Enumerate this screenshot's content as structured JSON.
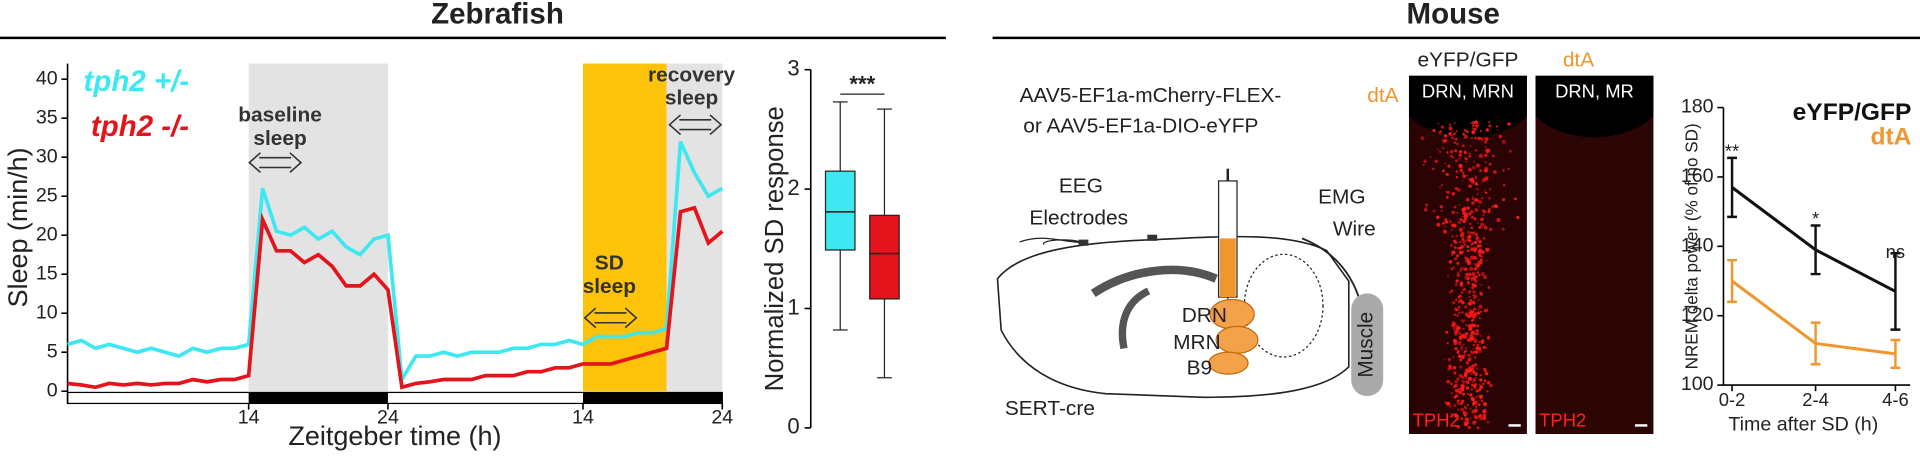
{
  "headers": [
    "Zebrafish",
    "Mouse"
  ],
  "chart_data": [
    {
      "type": "line",
      "x_label": "Zeitgeber time (h)",
      "y_label": "Sleep (min/h)",
      "x": [
        1,
        2,
        3,
        4,
        5,
        6,
        7,
        8,
        9,
        10,
        11,
        12,
        13,
        14,
        15,
        16,
        17,
        18,
        19,
        20,
        21,
        22,
        23,
        24,
        25,
        26,
        27,
        28,
        29,
        30,
        31,
        32,
        33,
        34,
        35,
        36,
        37,
        38,
        39,
        40,
        41,
        42,
        43,
        44,
        45,
        46,
        47,
        48
      ],
      "xlim": [
        1,
        48
      ],
      "xticks": [
        14,
        24,
        {
          "value": 38,
          "label": "14"
        },
        {
          "value": 48,
          "label": "24"
        }
      ],
      "ylim": [
        0,
        42
      ],
      "yticks": [
        0,
        5,
        10,
        15,
        20,
        25,
        30,
        35,
        40
      ],
      "series": [
        {
          "name": "tph2 +/-",
          "color": "#3ee8f0",
          "values": [
            6,
            6.5,
            5.5,
            6,
            5.5,
            5,
            5.5,
            5,
            4.5,
            5.5,
            5,
            5.5,
            5.5,
            6,
            26,
            20.5,
            20,
            21,
            19.5,
            20.5,
            18.5,
            17.5,
            19.5,
            20,
            1.5,
            4.5,
            4.5,
            5,
            4.5,
            5,
            5,
            5,
            5.5,
            5.5,
            6,
            6,
            6.5,
            6,
            7,
            7,
            7,
            7.5,
            7.5,
            8,
            32,
            28,
            25,
            26
          ]
        },
        {
          "name": "tph2 -/-",
          "color": "#e3141b",
          "values": [
            1,
            0.8,
            0.5,
            1,
            0.8,
            1,
            0.8,
            1,
            1,
            1.5,
            1.2,
            1.5,
            1.5,
            2,
            22,
            18,
            18,
            16.5,
            17.5,
            16,
            13.5,
            13.5,
            15,
            13,
            0.5,
            1,
            1.2,
            1.5,
            1.5,
            1.5,
            2,
            2,
            2,
            2.5,
            2.5,
            3,
            3,
            3.5,
            3.5,
            3.5,
            4,
            4.5,
            5,
            5.5,
            23,
            23.5,
            19,
            20.5
          ]
        }
      ],
      "shading": [
        {
          "range": [
            14,
            24
          ],
          "color": "#e3e3e3"
        },
        {
          "range": [
            38,
            44
          ],
          "color": "#fcc30a"
        },
        {
          "range": [
            44,
            48
          ],
          "color": "#e3e3e3"
        }
      ],
      "dark_periods": [
        [
          14,
          24
        ],
        [
          38,
          48
        ]
      ],
      "annotations": [
        {
          "lines": [
            "baseline",
            "sleep"
          ]
        },
        {
          "lines": [
            "SD",
            "sleep"
          ]
        },
        {
          "lines": [
            "recovery",
            "sleep"
          ]
        }
      ]
    },
    {
      "type": "box",
      "y_label": "Normalized SD response",
      "ylim": [
        0,
        3
      ],
      "yticks": [
        0,
        1,
        2,
        3
      ],
      "boxes": [
        {
          "color": "#3ee8f0",
          "whisker_low": 0.82,
          "q1": 1.49,
          "median": 1.81,
          "q3": 2.15,
          "whisker_high": 2.73
        },
        {
          "color": "#e3141b",
          "whisker_low": 0.42,
          "q1": 1.08,
          "median": 1.46,
          "q3": 1.78,
          "whisker_high": 2.67
        }
      ],
      "significance": "***"
    },
    {
      "type": "line",
      "x_label": "Time after SD (h)",
      "y_label": "NREM delta power (% of no SD)",
      "categories": [
        "0-2",
        "2-4",
        "4-6"
      ],
      "ylim": [
        100,
        180
      ],
      "yticks": [
        100,
        120,
        140,
        160,
        180
      ],
      "series": [
        {
          "name": "eYFP/GFP",
          "color": "#111111",
          "values": [
            157,
            139,
            127
          ],
          "errors": [
            8.5,
            7,
            11
          ]
        },
        {
          "name": "dtA",
          "color": "#f0962e",
          "values": [
            130,
            112,
            109
          ],
          "errors": [
            6,
            6,
            4
          ]
        }
      ],
      "annotations": [
        "**",
        "*",
        "ns"
      ]
    }
  ],
  "diagram": {
    "virus": [
      "AAV5-EF1a-mCherry-FLEX-",
      "dtA",
      "or AAV5-EF1a-DIO-eYFP"
    ],
    "eeg": [
      "EEG",
      "Electrodes"
    ],
    "emg": [
      "EMG",
      "Wire"
    ],
    "nuclei": [
      "DRN",
      "MRN",
      "B9"
    ],
    "muscle": "Muscle",
    "mouse_line": "SERT-cre"
  },
  "images": [
    {
      "title": "eYFP/GFP",
      "region": "DRN, MRN",
      "stain": "TPH2"
    },
    {
      "title": "dtA",
      "region": "DRN, MR",
      "stain": "TPH2"
    }
  ]
}
